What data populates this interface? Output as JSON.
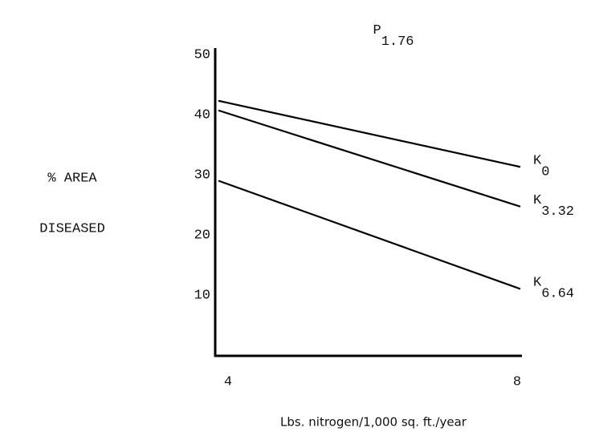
{
  "chart_data": {
    "type": "line",
    "title": "P1.76",
    "y_label": [
      "% AREA",
      "DISEASED"
    ],
    "x_label": "Lbs. nitrogen/1,000 sq. ft./year",
    "x": [
      4,
      8
    ],
    "xlim": [
      4,
      8
    ],
    "xticks": [
      4,
      8
    ],
    "ylim": [
      0,
      50
    ],
    "yticks": [
      10,
      20,
      30,
      40,
      50
    ],
    "series": [
      {
        "name": "K0",
        "color": "#000000",
        "values": [
          42.3,
          31.3
        ]
      },
      {
        "name": "K3.32",
        "color": "#000000",
        "values": [
          40.7,
          24.7
        ]
      },
      {
        "name": "K6.64",
        "color": "#000000",
        "values": [
          29,
          11
        ]
      }
    ]
  }
}
